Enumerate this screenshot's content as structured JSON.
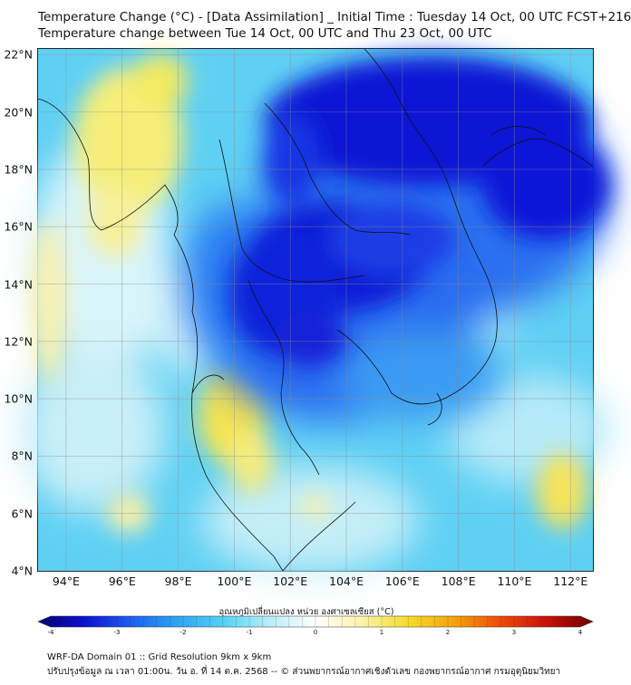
{
  "title": {
    "line1": "Temperature Change (°C) - [Data Assimilation] _ Initial Time : Tuesday 14 Oct, 00 UTC FCST+216",
    "line2": "Temperature change between Tue 14 Oct, 00 UTC and Thu 23 Oct, 00 UTC"
  },
  "map": {
    "lat_labels": [
      "22°N",
      "20°N",
      "18°N",
      "16°N",
      "14°N",
      "12°N",
      "10°N",
      "8°N",
      "6°N",
      "4°N"
    ],
    "lon_labels": [
      "94°E",
      "96°E",
      "98°E",
      "100°E",
      "102°E",
      "104°E",
      "106°E",
      "108°E",
      "110°E",
      "112°E"
    ],
    "lat_values": [
      22,
      20,
      18,
      16,
      14,
      12,
      10,
      8,
      6,
      4
    ],
    "lon_values": [
      94,
      96,
      98,
      100,
      102,
      104,
      106,
      108,
      110,
      112
    ],
    "extent": {
      "lon_min": 93,
      "lon_max": 112.8,
      "lat_min": 4,
      "lat_max": 22.2
    },
    "field_description_colors": {
      "strong_cool": "#0a14d8",
      "cool": "#2e6df0",
      "mild_cool": "#46c7f2",
      "neutral": "#e8f7fb",
      "warm": "#f7ef74"
    }
  },
  "colorbar": {
    "label": "อุณหภูมิเปลี่ยนแปลง หน่วย องศาเซลเซียส (°C)",
    "ticks": [
      "-4",
      "-3",
      "-2",
      "-1",
      "0",
      "1",
      "2",
      "3",
      "4"
    ],
    "tick_values": [
      -4,
      -3,
      -2,
      -1,
      0,
      1,
      2,
      3,
      4
    ],
    "range": [
      -4,
      4
    ],
    "colors": [
      "#050070",
      "#0a10d0",
      "#1d5ef0",
      "#2fa3f2",
      "#52d2f4",
      "#b8eef8",
      "#ffffff",
      "#fbf3a8",
      "#f7dc2a",
      "#f5a20a",
      "#ee4b08",
      "#c8100a",
      "#6e0000"
    ]
  },
  "footer": {
    "line1": "WRF-DA Domain 01 :: Grid Resolution 9km x 9km",
    "line2": "ปรับปรุงข้อมูล ณ เวลา 01:00น. วัน อ. ที่ 14 ต.ค. 2568 -- © ส่วนพยากรณ์อากาศเชิงตัวเลข กองพยากรณ์อากาศ กรมอุตุนิยมวิทยา"
  }
}
